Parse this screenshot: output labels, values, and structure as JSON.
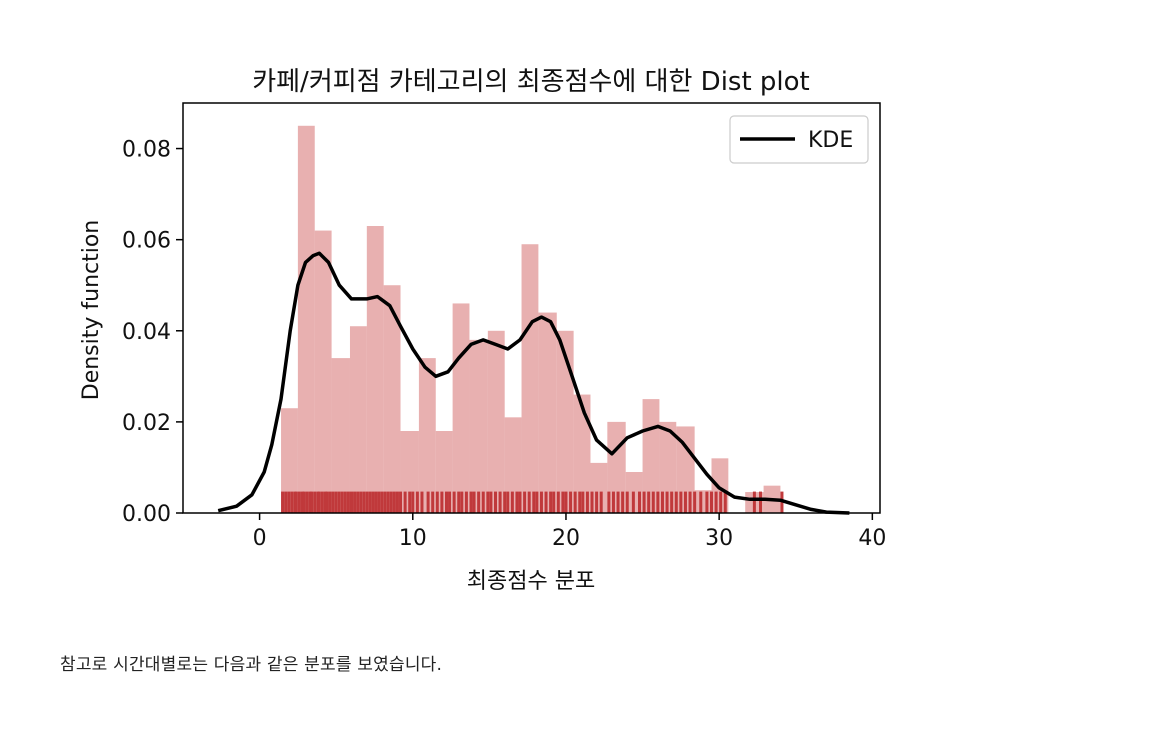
{
  "chart_data": {
    "type": "histogram",
    "title": "카페/커피점 카테고리의 최종점수에 대한 Dist plot",
    "xlabel": "최종점수 분포",
    "ylabel": "Density function",
    "xlim": [
      -5,
      40.5
    ],
    "ylim": [
      0,
      0.09
    ],
    "xticks": [
      0,
      10,
      20,
      30,
      40
    ],
    "yticks": [
      0.0,
      0.02,
      0.04,
      0.06,
      0.08
    ],
    "ytick_labels": [
      "0.00",
      "0.02",
      "0.04",
      "0.06",
      "0.08"
    ],
    "legend": {
      "placement": "top-right",
      "entries": [
        {
          "name": "KDE",
          "color": "#000000"
        }
      ]
    },
    "colors": {
      "bars": "#d97b7b",
      "rug": "#c0393b",
      "kde": "#000000"
    },
    "bins": [
      {
        "x0": 1.4,
        "x1": 2.5,
        "density": 0.023
      },
      {
        "x0": 2.5,
        "x1": 3.6,
        "density": 0.085
      },
      {
        "x0": 3.6,
        "x1": 4.7,
        "density": 0.062
      },
      {
        "x0": 4.7,
        "x1": 5.9,
        "density": 0.034
      },
      {
        "x0": 5.9,
        "x1": 7.0,
        "density": 0.041
      },
      {
        "x0": 7.0,
        "x1": 8.1,
        "density": 0.063
      },
      {
        "x0": 8.1,
        "x1": 9.2,
        "density": 0.05
      },
      {
        "x0": 9.2,
        "x1": 10.4,
        "density": 0.018
      },
      {
        "x0": 10.4,
        "x1": 11.5,
        "density": 0.034
      },
      {
        "x0": 11.5,
        "x1": 12.6,
        "density": 0.018
      },
      {
        "x0": 12.6,
        "x1": 13.7,
        "density": 0.046
      },
      {
        "x0": 13.7,
        "x1": 14.9,
        "density": 0.038
      },
      {
        "x0": 14.9,
        "x1": 16.0,
        "density": 0.04
      },
      {
        "x0": 16.0,
        "x1": 17.1,
        "density": 0.021
      },
      {
        "x0": 17.1,
        "x1": 18.2,
        "density": 0.059
      },
      {
        "x0": 18.2,
        "x1": 19.4,
        "density": 0.044
      },
      {
        "x0": 19.4,
        "x1": 20.5,
        "density": 0.04
      },
      {
        "x0": 20.5,
        "x1": 21.6,
        "density": 0.026
      },
      {
        "x0": 21.6,
        "x1": 22.7,
        "density": 0.011
      },
      {
        "x0": 22.7,
        "x1": 23.9,
        "density": 0.02
      },
      {
        "x0": 23.9,
        "x1": 25.0,
        "density": 0.009
      },
      {
        "x0": 25.0,
        "x1": 26.1,
        "density": 0.025
      },
      {
        "x0": 26.1,
        "x1": 27.2,
        "density": 0.02
      },
      {
        "x0": 27.2,
        "x1": 28.4,
        "density": 0.019
      },
      {
        "x0": 28.4,
        "x1": 29.5,
        "density": 0.005
      },
      {
        "x0": 29.5,
        "x1": 30.6,
        "density": 0.012
      },
      {
        "x0": 30.6,
        "x1": 31.7,
        "density": 0.0
      },
      {
        "x0": 31.7,
        "x1": 32.9,
        "density": 0.0046
      },
      {
        "x0": 32.9,
        "x1": 34.0,
        "density": 0.006
      }
    ],
    "kde": {
      "x": [
        -2.7,
        -1.5,
        -0.5,
        0.3,
        0.8,
        1.4,
        2.0,
        2.5,
        3.0,
        3.5,
        3.9,
        4.5,
        5.2,
        6.0,
        7.0,
        7.7,
        8.5,
        9.2,
        10.0,
        10.8,
        11.5,
        12.3,
        13.0,
        13.8,
        14.6,
        15.4,
        16.2,
        17.0,
        17.8,
        18.4,
        19.0,
        19.6,
        20.4,
        21.2,
        22.0,
        23.0,
        24.0,
        25.0,
        26.0,
        26.8,
        27.6,
        28.4,
        29.2,
        30.0,
        31.0,
        32.0,
        33.0,
        34.0,
        35.0,
        36.0,
        37.0,
        38.5
      ],
      "y": [
        0.0005,
        0.0015,
        0.004,
        0.009,
        0.015,
        0.025,
        0.04,
        0.05,
        0.055,
        0.0565,
        0.057,
        0.055,
        0.05,
        0.047,
        0.047,
        0.0475,
        0.0455,
        0.041,
        0.036,
        0.032,
        0.03,
        0.031,
        0.034,
        0.037,
        0.038,
        0.037,
        0.036,
        0.038,
        0.042,
        0.043,
        0.042,
        0.038,
        0.03,
        0.022,
        0.016,
        0.013,
        0.0165,
        0.018,
        0.019,
        0.018,
        0.0155,
        0.012,
        0.0085,
        0.0055,
        0.0035,
        0.003,
        0.003,
        0.0028,
        0.0018,
        0.0008,
        0.0002,
        0.0
      ]
    },
    "rug_height": 0.0047,
    "rug": [
      1.5,
      1.7,
      1.9,
      2.1,
      2.3,
      2.4,
      2.6,
      2.8,
      2.9,
      3.1,
      3.3,
      3.4,
      3.6,
      3.8,
      3.9,
      4.1,
      4.3,
      4.4,
      4.6,
      4.8,
      5.0,
      5.2,
      5.4,
      5.6,
      5.8,
      6.0,
      6.2,
      6.4,
      6.6,
      6.8,
      7.0,
      7.2,
      7.4,
      7.6,
      7.8,
      8.0,
      8.2,
      8.4,
      8.6,
      8.8,
      9.0,
      9.2,
      9.5,
      9.8,
      10.0,
      10.3,
      10.6,
      11.0,
      11.3,
      11.6,
      11.9,
      12.2,
      12.4,
      12.7,
      13.0,
      13.2,
      13.5,
      13.8,
      14.0,
      14.3,
      14.6,
      14.9,
      15.1,
      15.4,
      15.7,
      16.0,
      16.2,
      16.5,
      16.8,
      17.0,
      17.3,
      17.6,
      17.9,
      18.1,
      18.4,
      18.7,
      19.0,
      19.2,
      19.5,
      19.8,
      20.0,
      20.3,
      20.6,
      20.9,
      21.1,
      21.4,
      21.7,
      22.0,
      22.3,
      22.8,
      23.1,
      23.4,
      23.7,
      24.0,
      24.4,
      24.8,
      25.1,
      25.4,
      25.7,
      26.0,
      26.3,
      26.6,
      26.9,
      27.2,
      27.5,
      27.8,
      28.1,
      28.4,
      28.8,
      29.2,
      29.5,
      29.8,
      30.1,
      30.4,
      32.3,
      32.7,
      34.1
    ]
  },
  "caption": "참고로 시간대별로는 다음과 같은 분포를 보였습니다."
}
